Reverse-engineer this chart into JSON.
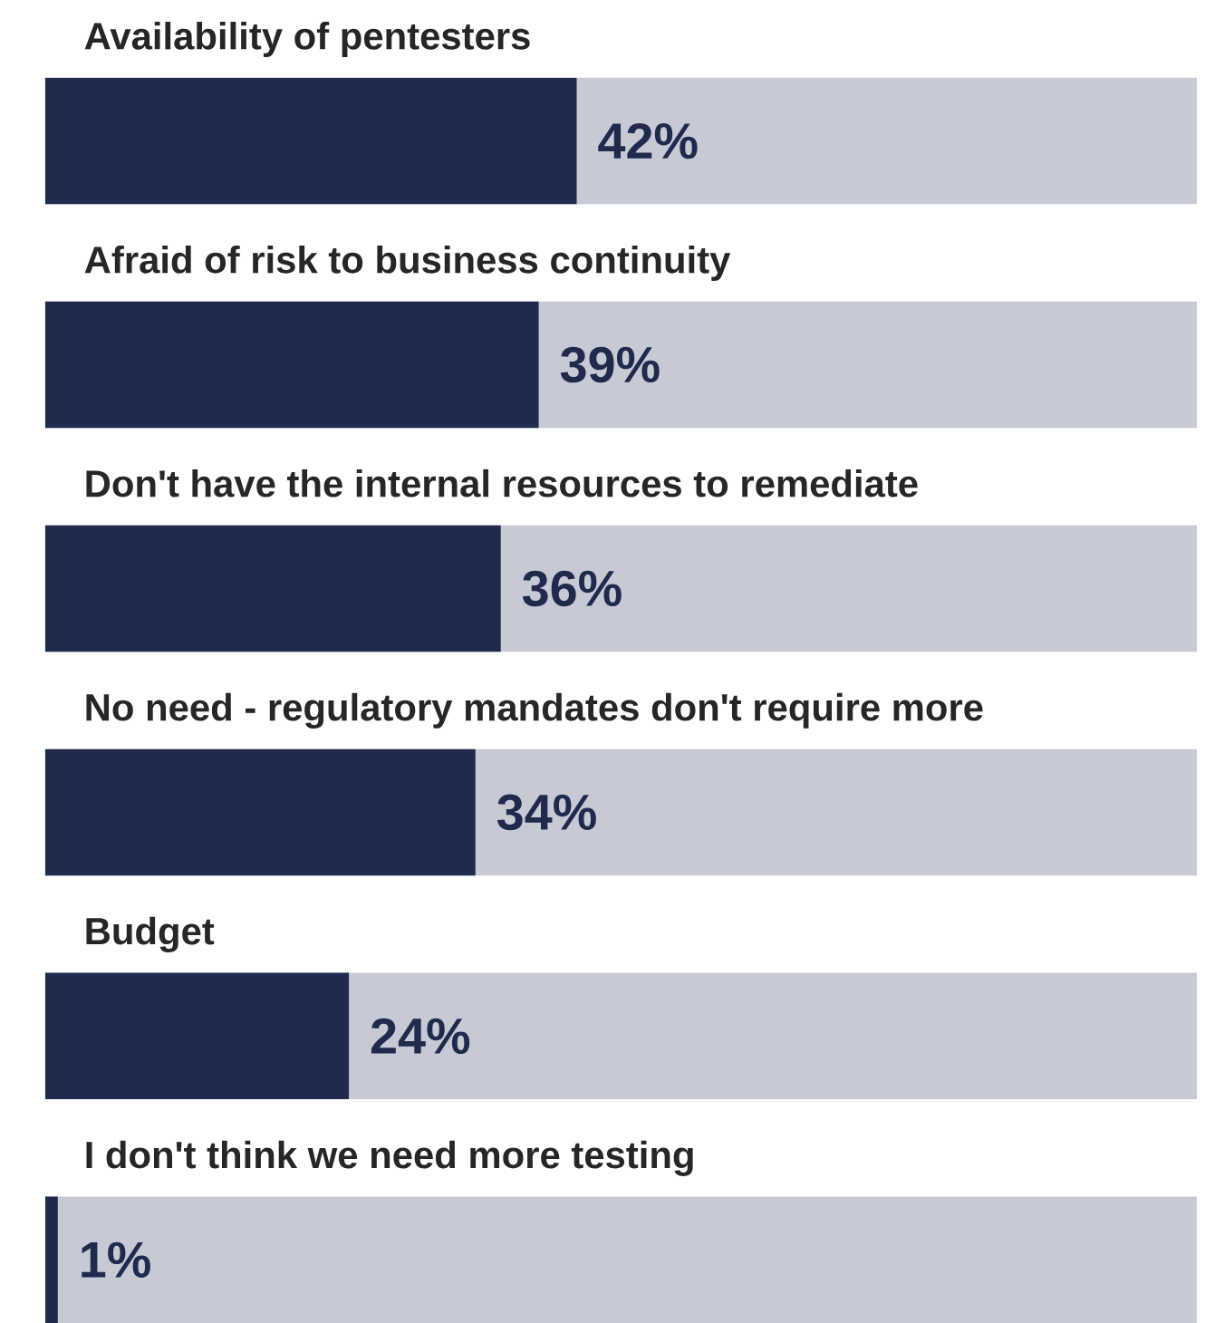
{
  "chart_data": {
    "type": "bar",
    "orientation": "horizontal",
    "categories": [
      "Availability of pentesters",
      "Afraid of risk to business continuity",
      "Don't have the internal resources to remediate",
      "No need -  regulatory mandates don't require more",
      "Budget",
      "I don't think we need more testing"
    ],
    "values": [
      42,
      39,
      36,
      34,
      24,
      1
    ],
    "value_labels": [
      "42%",
      "39%",
      "36%",
      "34%",
      "24%",
      "1%"
    ],
    "color": "#1f2a4d",
    "xlim": [
      0,
      91
    ]
  }
}
